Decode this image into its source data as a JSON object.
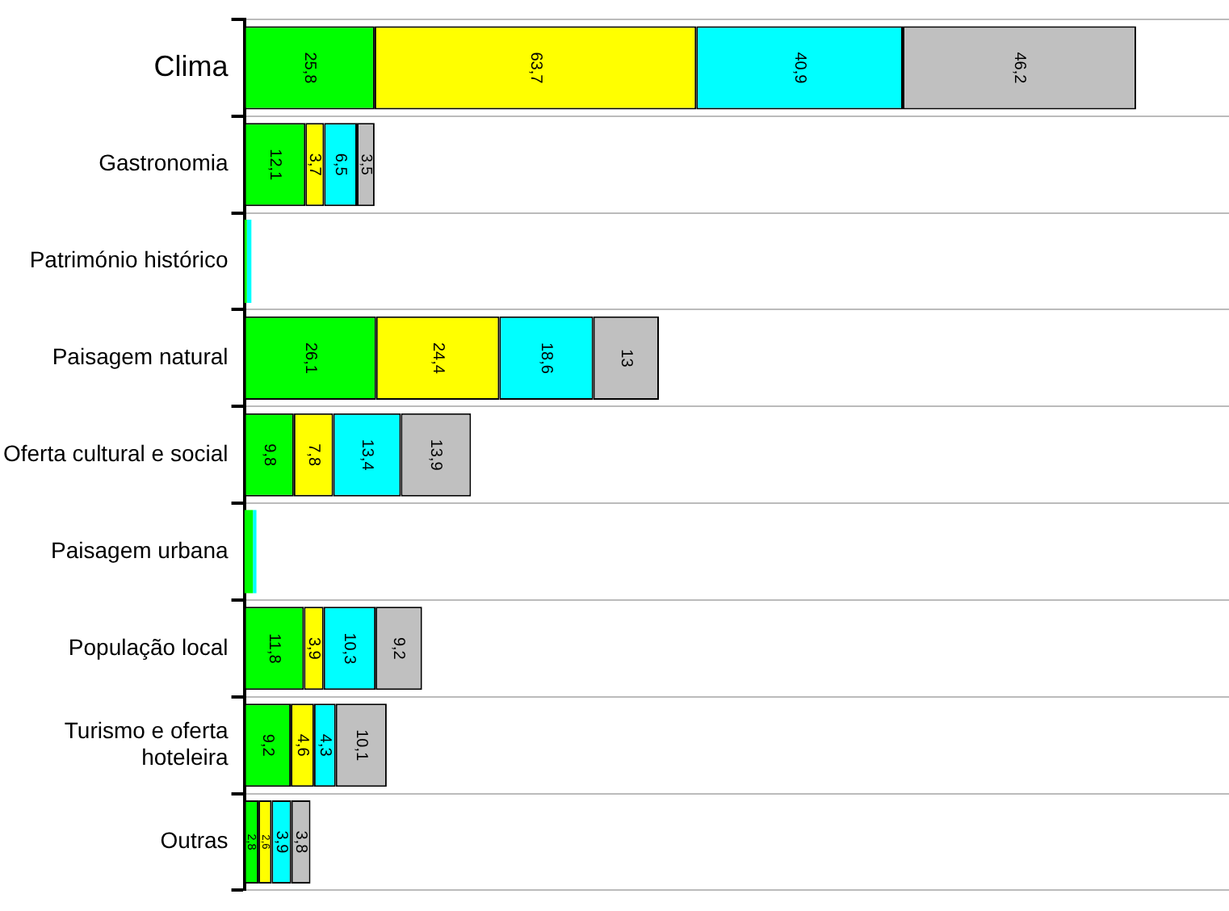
{
  "chart_data": {
    "type": "bar",
    "orientation": "horizontal",
    "stacked": true,
    "grid": "y",
    "tick_labels": "y",
    "xlim": [
      0,
      195
    ],
    "categories": [
      "Clima",
      "Gastronomia",
      "Património histórico",
      "Paisagem natural",
      "Oferta cultural e social",
      "Paisagem urbana",
      "População local",
      "Turismo e oferta hoteleira",
      "Outras"
    ],
    "series": [
      {
        "color": "#00ff00",
        "values": [
          25.8,
          12.1,
          0.5,
          26.1,
          9.8,
          1.7,
          11.8,
          9.2,
          2.8
        ],
        "value_labels": [
          "25,8",
          "12,1",
          null,
          "26,1",
          "9,8",
          null,
          "11,8",
          "9,2",
          "2,8"
        ]
      },
      {
        "color": "#ffff00",
        "values": [
          63.7,
          3.7,
          null,
          24.4,
          7.8,
          null,
          3.9,
          4.6,
          2.6
        ],
        "value_labels": [
          "63,7",
          "3,7",
          null,
          "24,4",
          "7,8",
          null,
          "3,9",
          "4,6",
          "2,6"
        ]
      },
      {
        "color": "#00ffff",
        "values": [
          40.9,
          6.5,
          0.9,
          18.6,
          13.4,
          0.7,
          10.3,
          4.3,
          3.9
        ],
        "value_labels": [
          "40,9",
          "6,5",
          null,
          "18,6",
          "13,4",
          null,
          "10,3",
          "4,3",
          "3,9"
        ]
      },
      {
        "color": "#c0c0c0",
        "values": [
          46.2,
          3.5,
          null,
          13,
          13.9,
          null,
          9.2,
          10.1,
          3.8
        ],
        "value_labels": [
          "46,2",
          "3,5",
          null,
          "13",
          "13,9",
          null,
          "9,2",
          "10,1",
          "3,8"
        ]
      }
    ]
  }
}
